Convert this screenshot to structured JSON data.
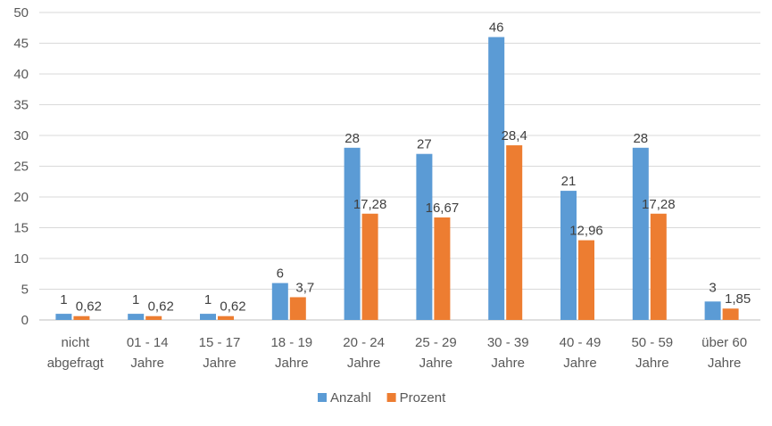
{
  "chart_data": {
    "type": "bar",
    "categories": [
      [
        "nicht",
        "abgefragt"
      ],
      [
        "01 - 14",
        "Jahre"
      ],
      [
        "15 - 17",
        "Jahre"
      ],
      [
        "18 - 19",
        "Jahre"
      ],
      [
        "20 - 24",
        "Jahre"
      ],
      [
        "25 - 29",
        "Jahre"
      ],
      [
        "30 - 39",
        "Jahre"
      ],
      [
        "40 - 49",
        "Jahre"
      ],
      [
        "50 - 59",
        "Jahre"
      ],
      [
        "über 60",
        "Jahre"
      ]
    ],
    "series": [
      {
        "name": "Anzahl",
        "color": "#5b9bd5",
        "values": [
          1,
          1,
          1,
          6,
          28,
          27,
          46,
          21,
          28,
          3
        ],
        "labels": [
          "1",
          "1",
          "1",
          "6",
          "28",
          "27",
          "46",
          "21",
          "28",
          "3"
        ]
      },
      {
        "name": "Prozent",
        "color": "#ed7d31",
        "values": [
          0.62,
          0.62,
          0.62,
          3.7,
          17.28,
          16.67,
          28.4,
          12.96,
          17.28,
          1.85
        ],
        "labels": [
          "0,62",
          "0,62",
          "0,62",
          "3,7",
          "17,28",
          "16,67",
          "28,4",
          "12,96",
          "17,28",
          "1,85"
        ]
      }
    ],
    "ylim": [
      0,
      50
    ],
    "yticks": [
      0,
      5,
      10,
      15,
      20,
      25,
      30,
      35,
      40,
      45,
      50
    ],
    "title": "",
    "xlabel": "",
    "ylabel": "",
    "grid": true,
    "legend_position": "bottom"
  }
}
